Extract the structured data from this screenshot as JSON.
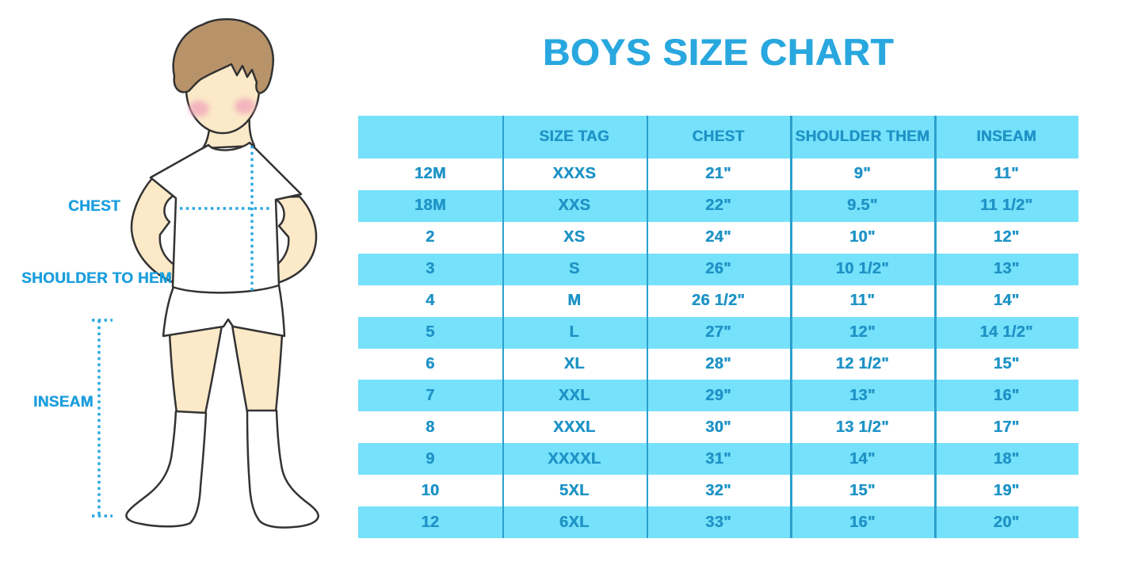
{
  "page": {
    "title": "BOYS SIZE CHART"
  },
  "figure_labels": {
    "chest": "CHEST",
    "shoulder_to_hem": "SHOULDER TO HEM",
    "inseam": "INSEAM"
  },
  "colors": {
    "accent_blue": "#29A7DF",
    "table_text_blue": "#1E93C6",
    "stripe_cyan": "#76E1FA",
    "divider_blue": "#2B9FCE",
    "skin": "#FBE9C8",
    "hair": "#B8936A",
    "blush_pink": "#F1A9BB"
  },
  "chart_data": {
    "type": "table",
    "title": "BOYS SIZE CHART",
    "columns": [
      "",
      "SIZE TAG",
      "CHEST",
      "SHOULDER THEM",
      "INSEAM"
    ],
    "rows": [
      [
        "12M",
        "XXXS",
        "21\"",
        "9\"",
        "11\""
      ],
      [
        "18M",
        "XXS",
        "22\"",
        "9.5\"",
        "11 1/2\""
      ],
      [
        "2",
        "XS",
        "24\"",
        "10\"",
        "12\""
      ],
      [
        "3",
        "S",
        "26\"",
        "10 1/2\"",
        "13\""
      ],
      [
        "4",
        "M",
        "26 1/2\"",
        "11\"",
        "14\""
      ],
      [
        "5",
        "L",
        "27\"",
        "12\"",
        "14 1/2\""
      ],
      [
        "6",
        "XL",
        "28\"",
        "12 1/2\"",
        "15\""
      ],
      [
        "7",
        "XXL",
        "29\"",
        "13\"",
        "16\""
      ],
      [
        "8",
        "XXXL",
        "30\"",
        "13 1/2\"",
        "17\""
      ],
      [
        "9",
        "XXXXL",
        "31\"",
        "14\"",
        "18\""
      ],
      [
        "10",
        "5XL",
        "32\"",
        "15\"",
        "19\""
      ],
      [
        "12",
        "6XL",
        "33\"",
        "16\"",
        "20\""
      ]
    ],
    "layout": {
      "striped": true,
      "stripe_colors": [
        "#FFFFFF",
        "#76E1FA"
      ],
      "header_background": "#76E1FA",
      "grid": "vertical-dividers-only"
    }
  }
}
